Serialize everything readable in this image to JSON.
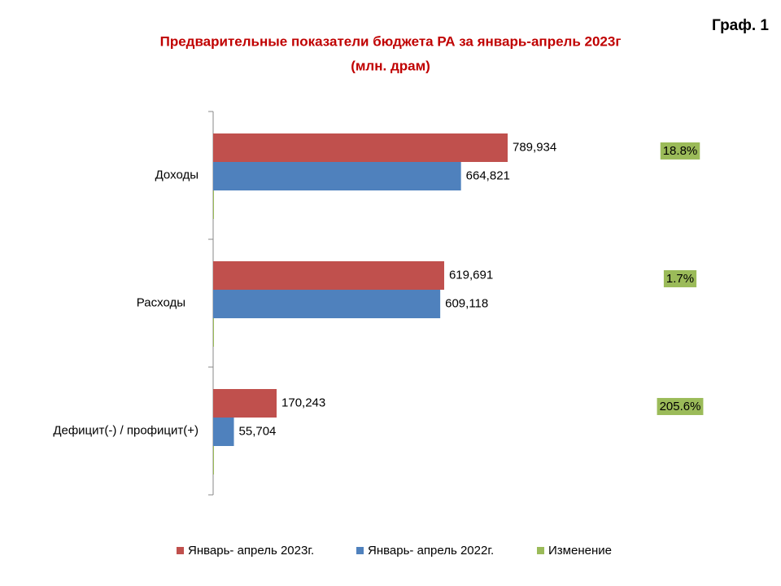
{
  "label": "Граф. 1",
  "chart_data": {
    "type": "bar",
    "orientation": "horizontal",
    "title": "Предварительные показатели бюджета РА за январь-апрель 2023г",
    "subtitle": "(млн. драм)",
    "categories": [
      "Доходы",
      "Расходы",
      "Дефицит(-) / профицит(+)"
    ],
    "series": [
      {
        "name": "Январь- апрель 2023г.",
        "color": "#c0504d",
        "values": [
          789934,
          619691,
          170243
        ],
        "value_labels": [
          "789,934",
          "619,691",
          "170,243"
        ]
      },
      {
        "name": "Январь- апрель 2022г.",
        "color": "#4f81bd",
        "values": [
          664821,
          609118,
          55704
        ],
        "value_labels": [
          "664,821",
          "609,118",
          "55,704"
        ]
      },
      {
        "name": "Изменение",
        "color": "#9bbb59",
        "values": [
          18.8,
          1.7,
          205.6
        ],
        "value_labels": [
          "18.8%",
          "1.7%",
          "205.6%"
        ]
      }
    ],
    "legend": "bottom"
  }
}
